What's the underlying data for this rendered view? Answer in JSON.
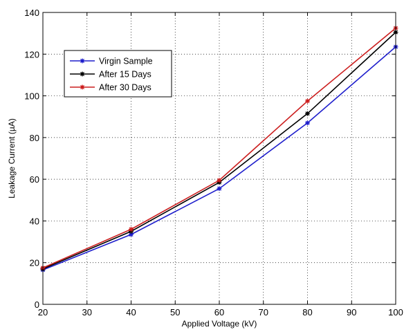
{
  "chart_data": {
    "type": "line",
    "title": "",
    "xlabel": "Applied Voltage (kV)",
    "ylabel": "Leakage Current (µA)",
    "x": [
      20,
      40,
      60,
      80,
      100
    ],
    "xlim": [
      20,
      100
    ],
    "ylim": [
      0,
      140
    ],
    "xticks": [
      20,
      30,
      40,
      50,
      60,
      70,
      80,
      90,
      100
    ],
    "yticks": [
      0,
      20,
      40,
      60,
      80,
      100,
      120,
      140
    ],
    "grid": true,
    "legend_position": "upper-left",
    "series": [
      {
        "name": "Virgin Sample",
        "color": "#1f1fcc",
        "values": [
          16.5,
          33.5,
          55.5,
          87,
          123.5
        ]
      },
      {
        "name": "After 15 Days",
        "color": "#000000",
        "values": [
          17,
          35,
          58.5,
          91.5,
          130.5
        ]
      },
      {
        "name": "After 30 Days",
        "color": "#cc1f1f",
        "values": [
          17.5,
          36,
          59.5,
          97.5,
          132.5
        ]
      }
    ]
  }
}
